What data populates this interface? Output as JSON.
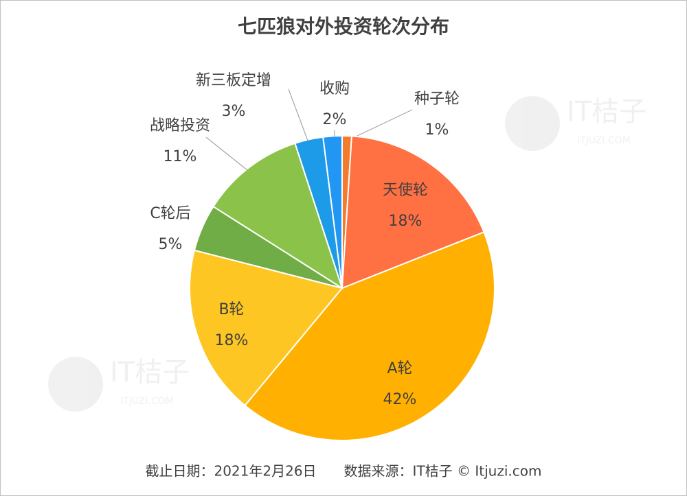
{
  "chart_data": {
    "type": "pie",
    "title": "七匹狼对外投资轮次分布",
    "categories": [
      "种子轮",
      "天使轮",
      "A轮",
      "B轮",
      "C轮后",
      "战略投资",
      "新三板定增",
      "收购"
    ],
    "values": [
      1,
      18,
      42,
      18,
      5,
      11,
      3,
      2
    ],
    "value_labels": [
      "1%",
      "18%",
      "42%",
      "18%",
      "5%",
      "11%",
      "3%",
      "2%"
    ],
    "colors": [
      "#f47b2a",
      "#ff7043",
      "#ffb000",
      "#fdc623",
      "#70ad47",
      "#8bc34a",
      "#1e9be8",
      "#2196f3"
    ],
    "footer": "截止日期：2021年2月26日　　数据来源：IT桔子 © Itjuzi.com",
    "watermark": {
      "title": "IT桔子",
      "subtitle": "ITJUZI.COM"
    }
  }
}
